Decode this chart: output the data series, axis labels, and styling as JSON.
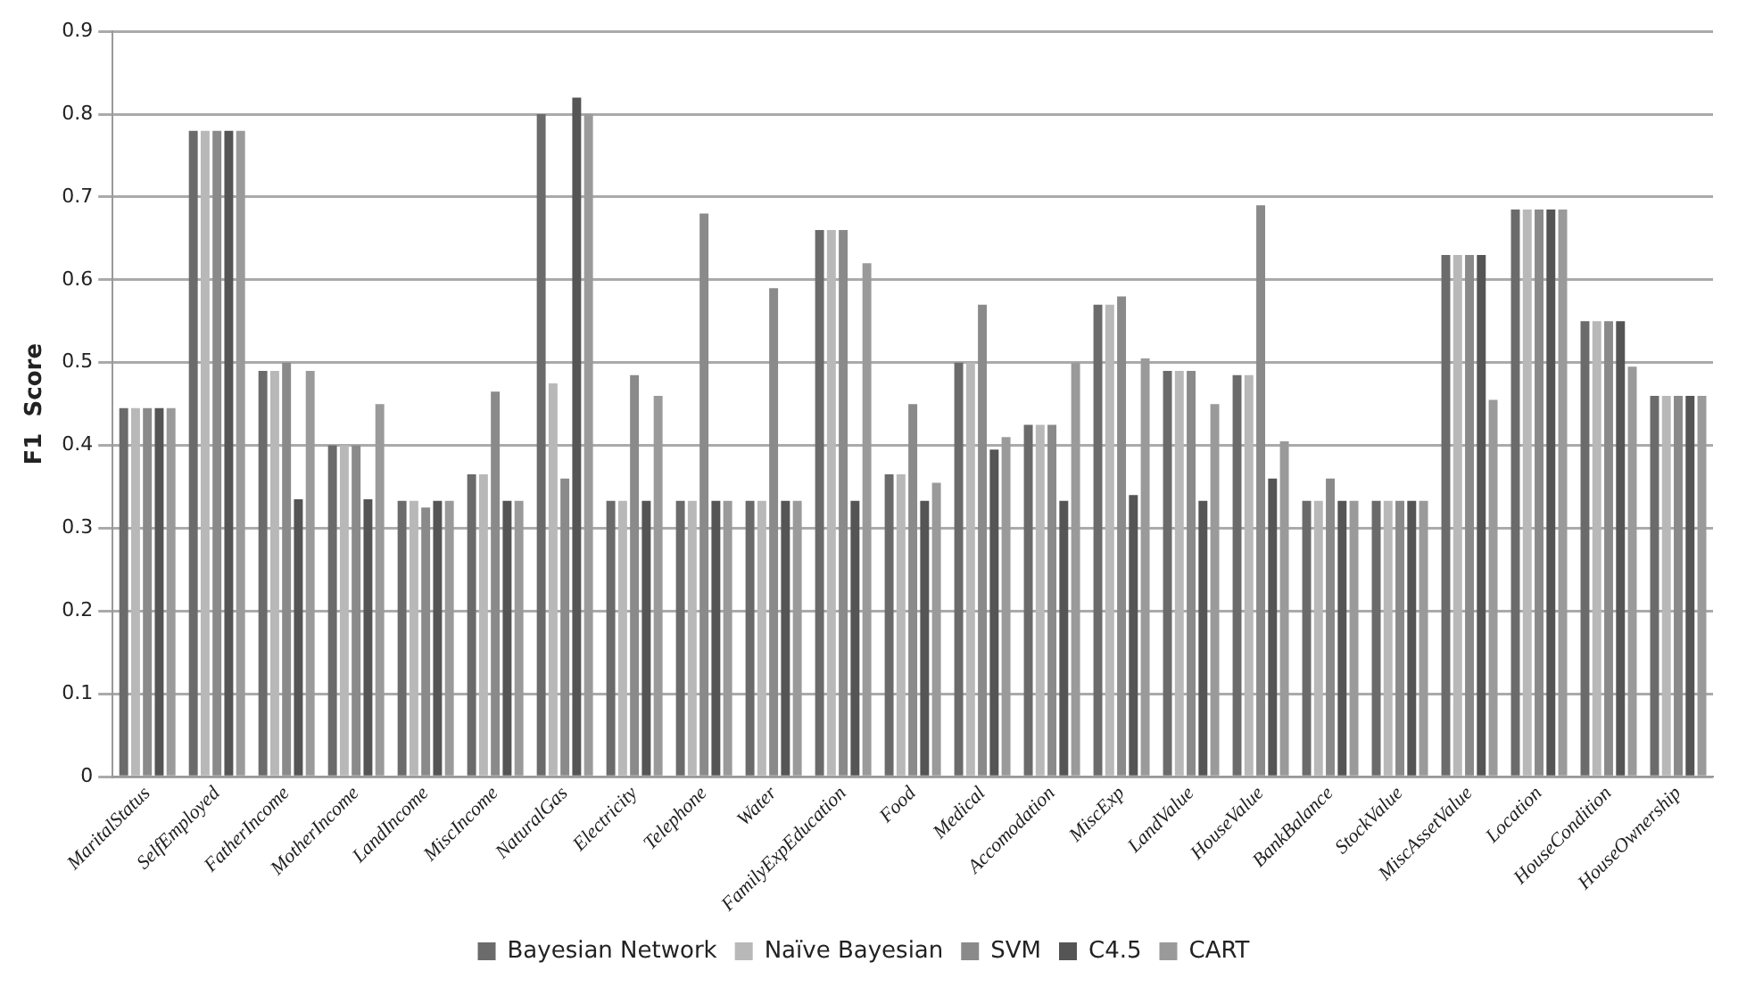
{
  "chart_data": {
    "type": "bar",
    "ylabel": "F1  Score",
    "categories": [
      "MaritalStatus",
      "SelfEmployed",
      "FatherIncome",
      "MotherIncome",
      "LandIncome",
      "MiscIncome",
      "NaturalGas",
      "Electricity",
      "Telephone",
      "Water",
      "FamilyExpEducation",
      "Food",
      "Medical",
      "Accomodation",
      "MiscExp",
      "LandValue",
      "HouseValue",
      "BankBalance",
      "StockValue",
      "MiscAssetValue",
      "Location",
      "HouseCondition",
      "HouseOwnership"
    ],
    "series": [
      {
        "name": "Bayesian Network",
        "color": "#6b6b6b",
        "values": [
          0.445,
          0.78,
          0.49,
          0.4,
          0.333,
          0.365,
          0.8,
          0.333,
          0.333,
          0.333,
          0.66,
          0.365,
          0.5,
          0.425,
          0.57,
          0.49,
          0.485,
          0.333,
          0.333,
          0.63,
          0.685,
          0.55,
          0.46
        ]
      },
      {
        "name": "Naïve Bayesian",
        "color": "#b8b8b8",
        "values": [
          0.445,
          0.78,
          0.49,
          0.4,
          0.333,
          0.365,
          0.475,
          0.333,
          0.333,
          0.333,
          0.66,
          0.365,
          0.5,
          0.425,
          0.57,
          0.49,
          0.485,
          0.333,
          0.333,
          0.63,
          0.685,
          0.55,
          0.46
        ]
      },
      {
        "name": "SVM",
        "color": "#8a8a8a",
        "values": [
          0.445,
          0.78,
          0.5,
          0.4,
          0.325,
          0.465,
          0.36,
          0.485,
          0.68,
          0.59,
          0.66,
          0.45,
          0.57,
          0.425,
          0.58,
          0.49,
          0.69,
          0.36,
          0.333,
          0.63,
          0.685,
          0.55,
          0.46
        ]
      },
      {
        "name": "C4.5",
        "color": "#555555",
        "values": [
          0.445,
          0.78,
          0.335,
          0.335,
          0.333,
          0.333,
          0.82,
          0.333,
          0.333,
          0.333,
          0.333,
          0.333,
          0.395,
          0.333,
          0.34,
          0.333,
          0.36,
          0.333,
          0.333,
          0.63,
          0.685,
          0.55,
          0.46
        ]
      },
      {
        "name": "CART",
        "color": "#9a9a9a",
        "values": [
          0.445,
          0.78,
          0.49,
          0.45,
          0.333,
          0.333,
          0.8,
          0.46,
          0.333,
          0.333,
          0.62,
          0.355,
          0.41,
          0.5,
          0.505,
          0.45,
          0.405,
          0.333,
          0.333,
          0.455,
          0.685,
          0.495,
          0.46
        ]
      }
    ],
    "ylim": [
      0,
      0.9
    ],
    "yticks": [
      0,
      0.1,
      0.2,
      0.3,
      0.4,
      0.5,
      0.6,
      0.7,
      0.8,
      0.9
    ],
    "grid": "y",
    "legend": "bottom"
  }
}
